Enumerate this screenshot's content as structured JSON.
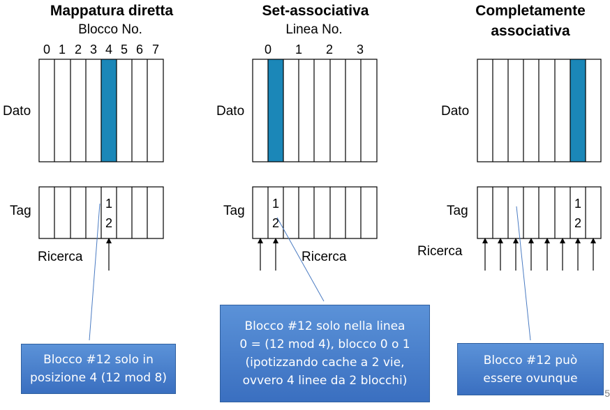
{
  "colors": {
    "highlight": "#1b87b8",
    "callout_top": "#5b92d8",
    "callout_bottom": "#3a6fc0"
  },
  "direct": {
    "title": "Mappatura diretta",
    "subtitle": "Blocco No.",
    "block_numbers": [
      "0",
      "1",
      "2",
      "3",
      "4",
      "5",
      "6",
      "7"
    ],
    "data_label": "Dato",
    "tag_label": "Tag",
    "tag_value_top": "1",
    "tag_value_bottom": "2",
    "search_label": "Ricerca",
    "highlight_index": 4
  },
  "set_assoc": {
    "title": "Set-associativa",
    "subtitle": "Linea No.",
    "line_numbers": [
      "0",
      "1",
      "2",
      "3"
    ],
    "data_label": "Dato",
    "tag_label": "Tag",
    "tag_value_top": "1",
    "tag_value_bottom": "2",
    "search_label": "Ricerca",
    "highlight_index": 1
  },
  "full_assoc": {
    "title_line1": "Completamente",
    "title_line2": "associativa",
    "data_label": "Dato",
    "tag_label": "Tag",
    "tag_value_top": "1",
    "tag_value_bottom": "2",
    "search_label": "Ricerca",
    "highlight_index": 6
  },
  "callouts": {
    "direct": {
      "line1": "Blocco #12 solo in",
      "line2": "posizione 4 (12 mod 8)"
    },
    "set_assoc": {
      "line1": "Blocco #12 solo nella linea",
      "line2": "0 = (12 mod 4), blocco 0 o 1",
      "line3": "(ipotizzando cache a 2 vie,",
      "line4": "ovvero 4 linee da 2 blocchi)"
    },
    "full_assoc": {
      "line1": "Blocco #12 può",
      "line2": "essere ovunque"
    }
  },
  "page_number": "5"
}
